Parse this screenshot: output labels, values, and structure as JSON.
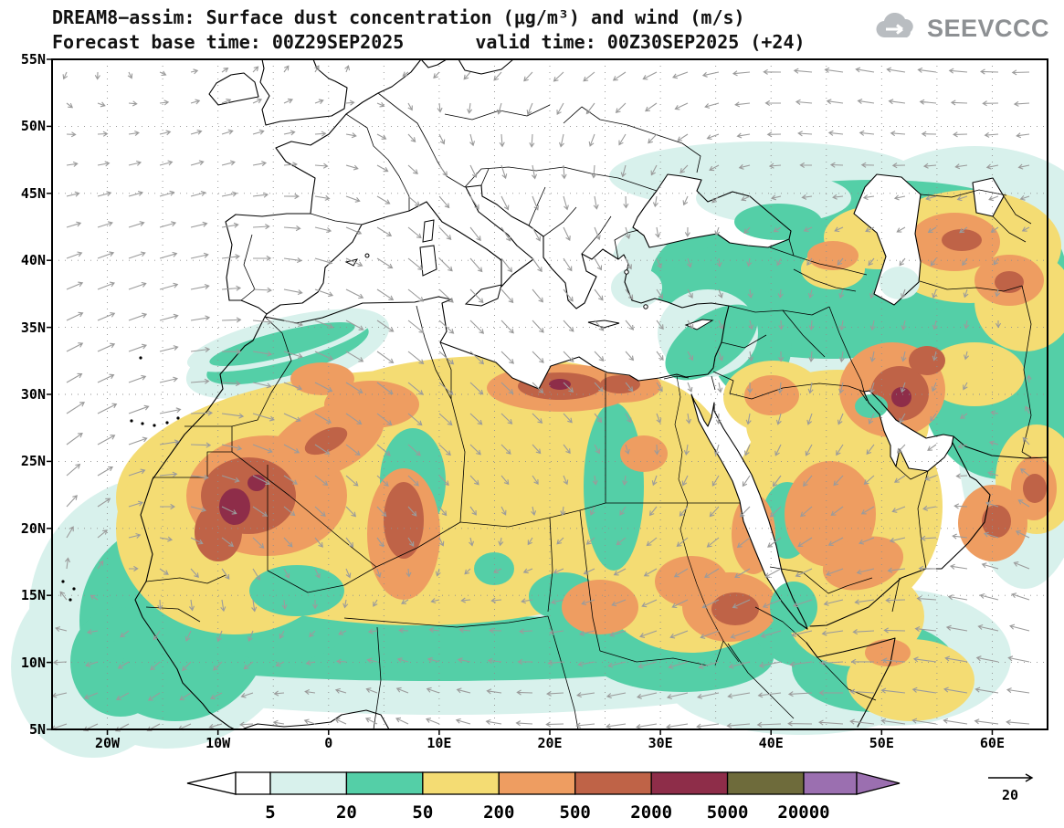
{
  "header": {
    "title_line1": "DREAM8−assim: Surface dust concentration (μg/m³) and wind (m/s)",
    "forecast_label": "Forecast base time: 00Z29SEP2025",
    "valid_label": "valid time: 00Z30SEP2025 (+24)",
    "logo_text": "SEEVCCC"
  },
  "chart_data": {
    "type": "heatmap",
    "title": "DREAM8−assim: Surface dust concentration (μg/m³) and wind (m/s)",
    "subtitle": "Forecast base time: 00Z29SEP2025  valid time: 00Z30SEP2025 (+24)",
    "model": "DREAM8−assim",
    "variable": "Surface dust concentration",
    "units": "μg/m³",
    "wind_units": "m/s",
    "forecast_base_time": "00Z29SEP2025",
    "valid_time": "00Z30SEP2025",
    "forecast_step": "+24",
    "x_ticks": [
      "20W",
      "10W",
      "0",
      "10E",
      "20E",
      "30E",
      "40E",
      "50E",
      "60E"
    ],
    "y_ticks": [
      "55N",
      "50N",
      "45N",
      "40N",
      "35N",
      "30N",
      "25N",
      "20N",
      "15N",
      "10N",
      "5N"
    ],
    "lon_range": [
      -25,
      65
    ],
    "lat_range": [
      5,
      55
    ],
    "grid": true,
    "legend_levels": [
      "5",
      "20",
      "50",
      "200",
      "500",
      "2000",
      "5000",
      "20000"
    ],
    "legend_colors": [
      "#ffffff",
      "#d8f1ec",
      "#54cfa7",
      "#f4dc73",
      "#ee9d61",
      "#bf6347",
      "#8e2d49",
      "#6e6b3b",
      "#9b6fb0"
    ],
    "color_scale": [
      {
        "range": "<5",
        "color": "#ffffff"
      },
      {
        "range": "5-20",
        "color": "#d8f1ec"
      },
      {
        "range": "20-50",
        "color": "#54cfa7"
      },
      {
        "range": "50-200",
        "color": "#f4dc73"
      },
      {
        "range": "200-500",
        "color": "#ee9d61"
      },
      {
        "range": "500-2000",
        "color": "#bf6347"
      },
      {
        "range": "2000-5000",
        "color": "#8e2d49"
      },
      {
        "range": "5000-20000",
        "color": "#6e6b3b"
      },
      {
        "range": ">20000",
        "color": "#9b6fb0"
      }
    ],
    "wind_reference": "20",
    "wind_arrow_color": "#9b9b9b"
  }
}
